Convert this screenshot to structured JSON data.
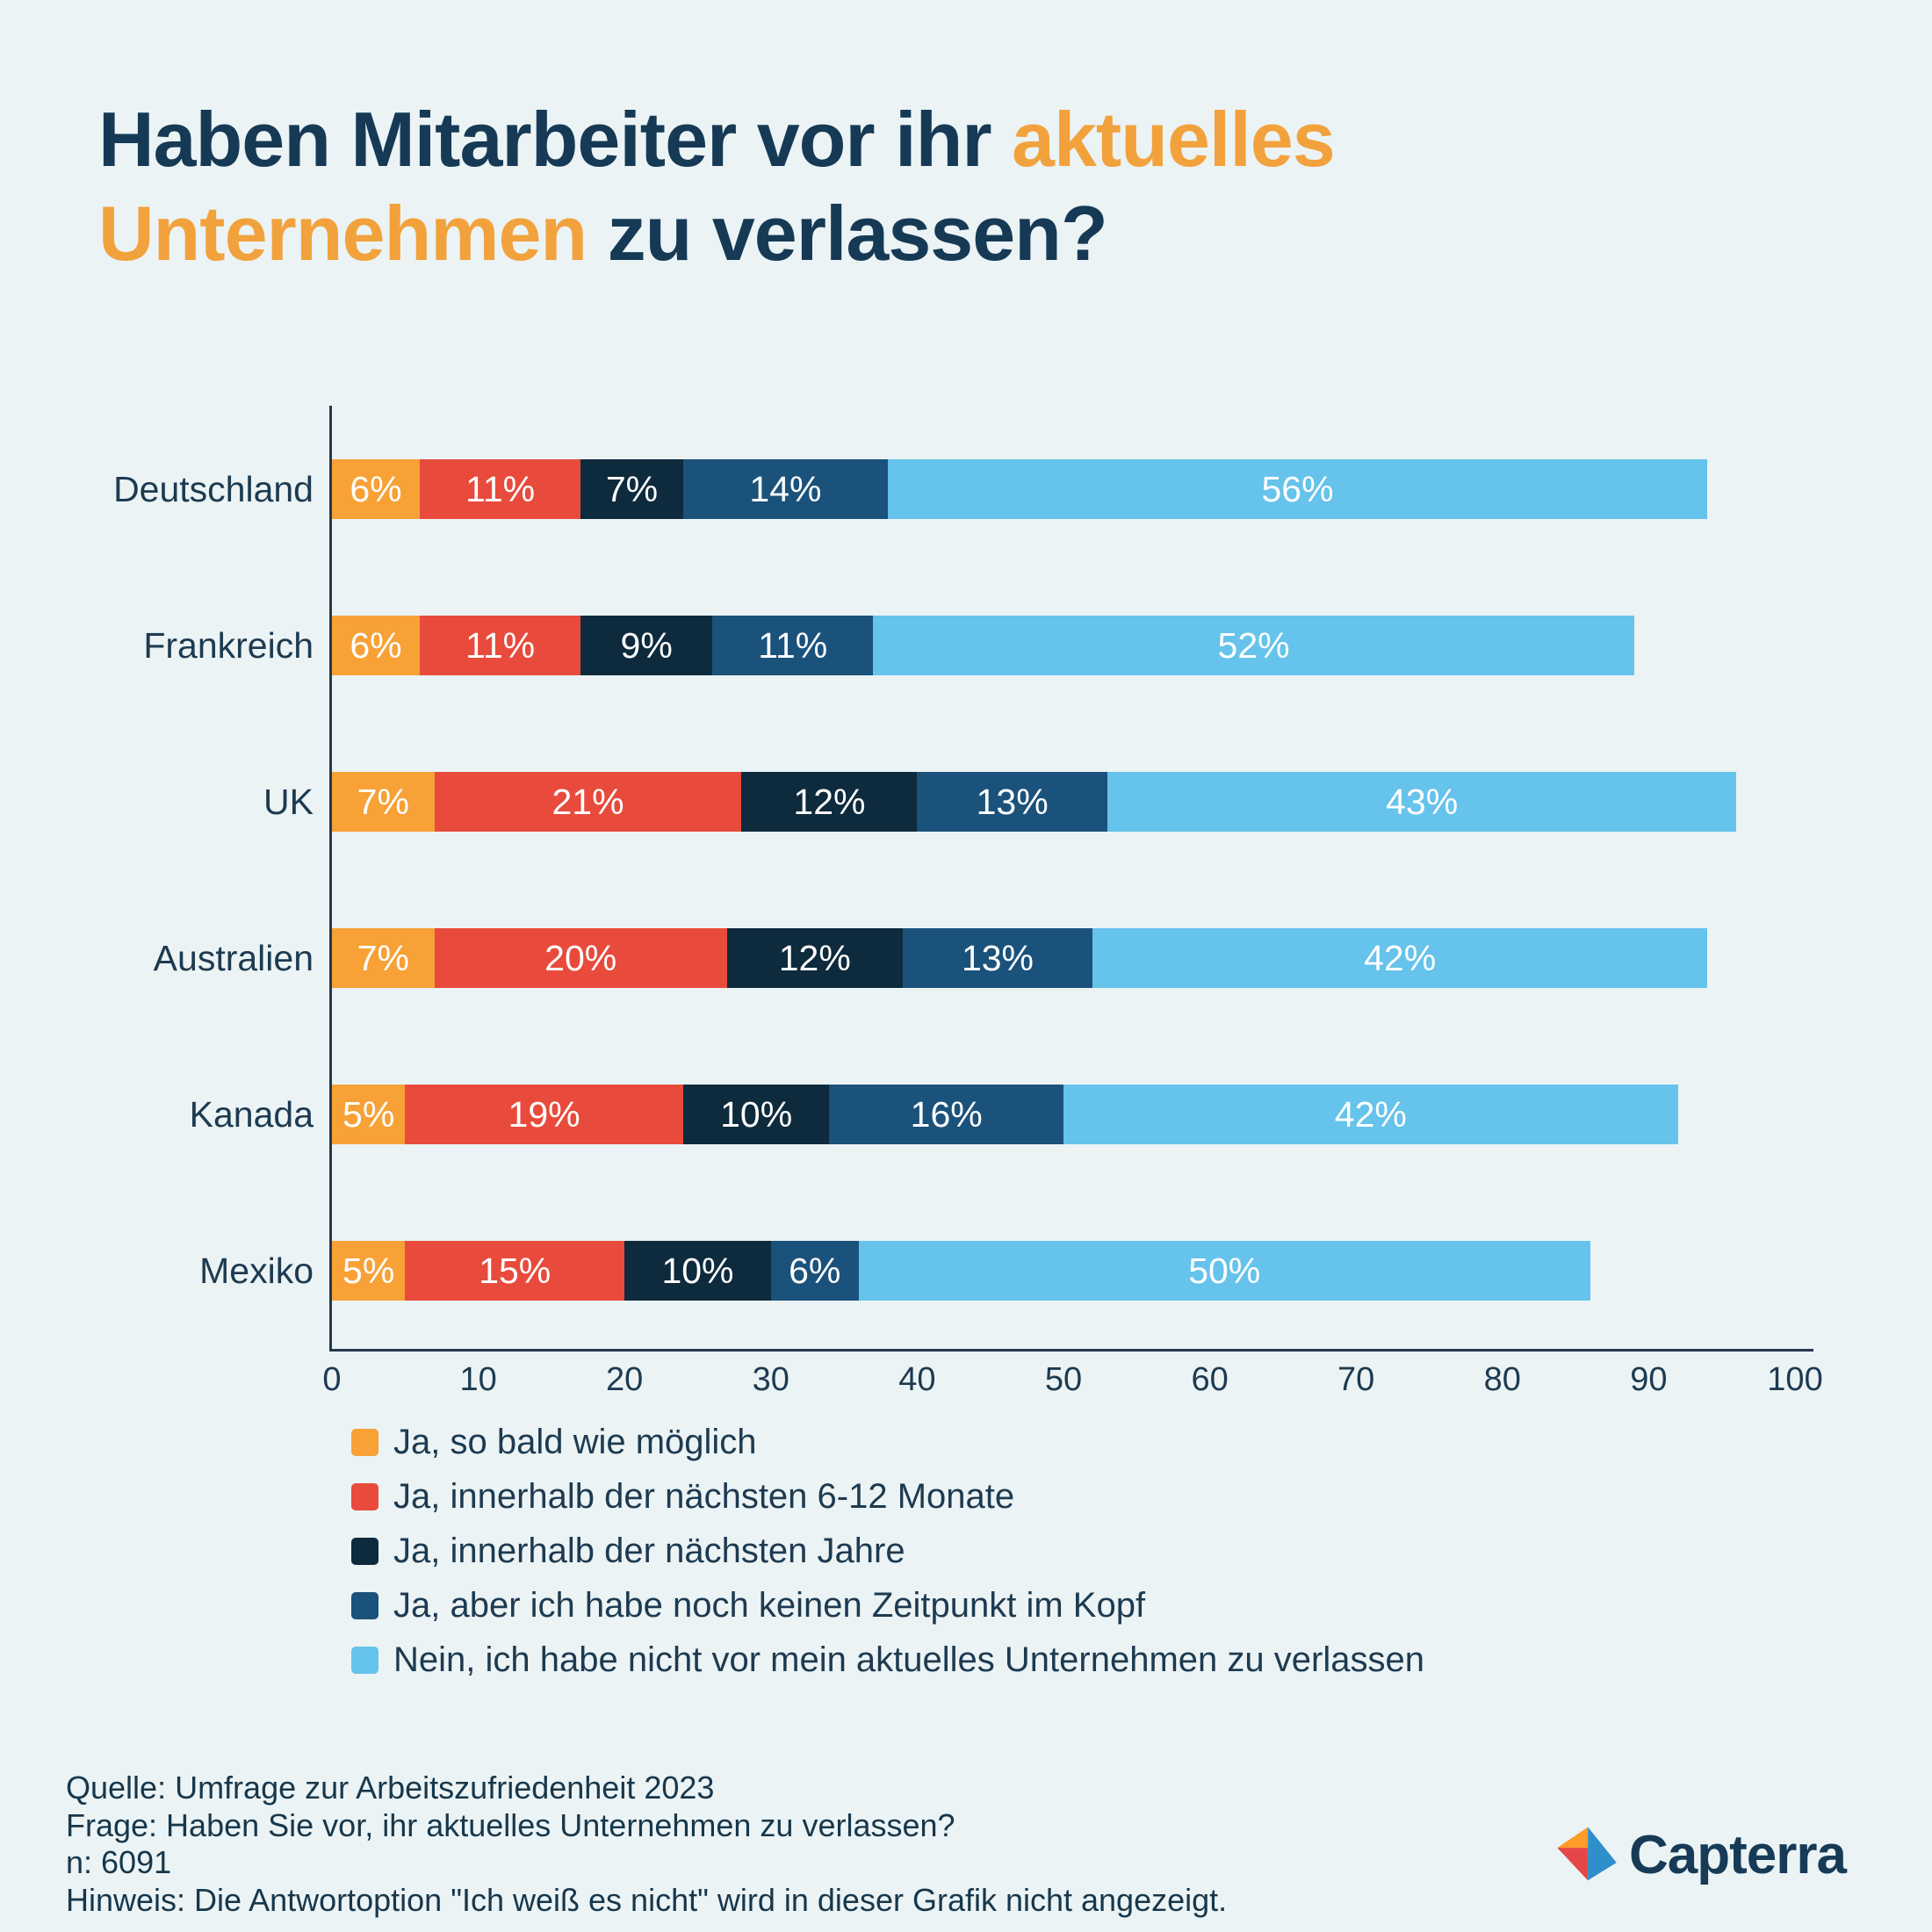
{
  "title": {
    "part1": "Haben Mitarbeiter vor ihr ",
    "highlight": "aktuelles Unternehmen",
    "part2": " zu verlassen?"
  },
  "chart_data": {
    "type": "bar",
    "orientation": "horizontal",
    "stacked": true,
    "categories": [
      "Deutschland",
      "Frankreich",
      "UK",
      "Australien",
      "Kanada",
      "Mexiko"
    ],
    "series": [
      {
        "name": "Ja, so bald wie möglich",
        "color": "#F7A136",
        "values": [
          6,
          6,
          7,
          7,
          5,
          5
        ]
      },
      {
        "name": "Ja, innerhalb der nächsten 6-12 Monate",
        "color": "#E84B3C",
        "values": [
          11,
          11,
          21,
          20,
          19,
          15
        ]
      },
      {
        "name": "Ja, innerhalb der nächsten Jahre",
        "color": "#0E2A3D",
        "values": [
          7,
          9,
          12,
          12,
          10,
          10
        ]
      },
      {
        "name": "Ja, aber ich habe noch keinen Zeitpunkt im Kopf",
        "color": "#1A527B",
        "values": [
          14,
          11,
          13,
          13,
          16,
          6
        ]
      },
      {
        "name": "Nein, ich habe nicht vor mein aktuelles Unternehmen zu verlassen",
        "color": "#66C3EB",
        "values": [
          56,
          52,
          43,
          42,
          42,
          50
        ]
      }
    ],
    "xlim": [
      0,
      100
    ],
    "xticks": [
      0,
      10,
      20,
      30,
      40,
      50,
      60,
      70,
      80,
      90,
      100
    ],
    "value_suffix": "%",
    "legend_position": "bottom-left",
    "grid": false
  },
  "footer": {
    "lines": [
      "Quelle: Umfrage zur Arbeitszufriedenheit 2023",
      "Frage: Haben Sie vor, ihr aktuelles Unternehmen zu verlassen?",
      "n: 6091",
      "Hinweis: Die Antwortoption \"Ich weiß es nicht\" wird in dieser Grafik nicht angezeigt."
    ]
  },
  "logo": {
    "text": "Capterra",
    "colors": {
      "orange": "#FF9D28",
      "red": "#E54747",
      "blue": "#2E8FCB",
      "navy": "#173B56"
    }
  },
  "colors": {
    "background": "#EBF3F5",
    "title_navy": "#163A55",
    "title_orange": "#F2A23C",
    "axis": "#25394A",
    "text": "#1D3A50"
  }
}
